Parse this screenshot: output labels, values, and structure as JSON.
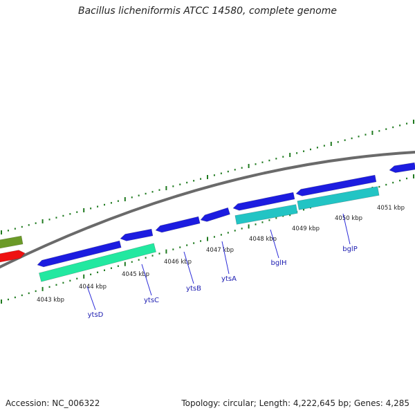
{
  "title": "Bacillus licheniformis ATCC 14580, complete genome",
  "accession_label": "Accession:",
  "accession": "NC_006322",
  "topology_text": "Topology: circular; Length: 4,222,645 bp; Genes: 4,285",
  "track_colors": {
    "backbone": "#6a6a6a",
    "forward_cds": "#1c1ce0",
    "reverse_teal": "#22c4c4",
    "reverse_green": "#22e8a0",
    "tick": "#1f7a1f",
    "olive": "#6b9a28",
    "red": "#ee1111",
    "label_line": "#2a2ad8"
  },
  "kbp_labels": [
    "4043 kbp",
    "4044 kbp",
    "4045 kbp",
    "4046 kbp",
    "4047 kbp",
    "4048 kbp",
    "4049 kbp",
    "4050 kbp",
    "4051 kbp"
  ],
  "genes": [
    "ytsD",
    "ytsC",
    "ytsB",
    "ytsA",
    "bglH",
    "bglP"
  ]
}
